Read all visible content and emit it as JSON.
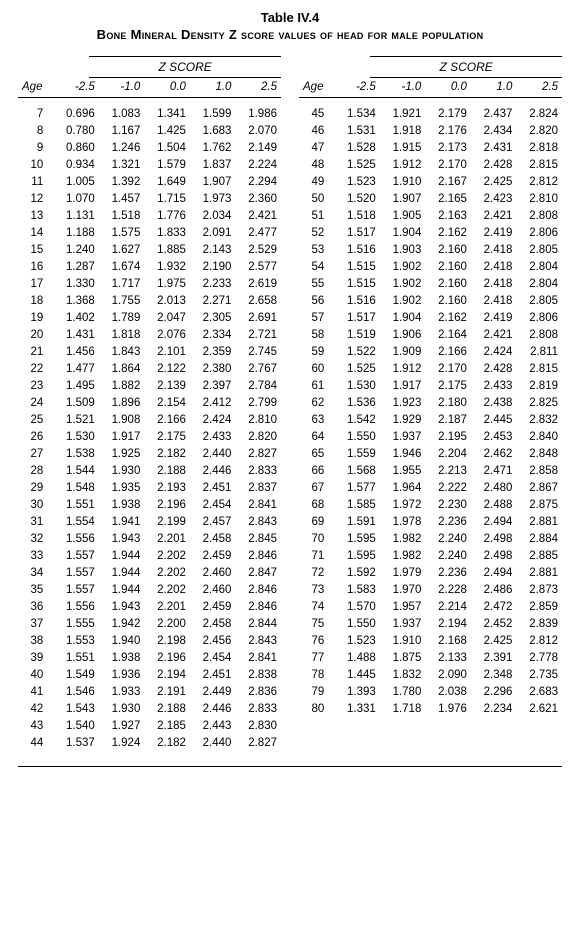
{
  "table_label": "Table IV.4",
  "title": "Bone Mineral Density Z score values of head for male population",
  "z_header": "Z  SCORE",
  "age_header": "Age",
  "score_headers": [
    "-2.5",
    "-1.0",
    "0.0",
    "1.0",
    "2.5"
  ],
  "left": [
    {
      "age": "7",
      "v": [
        "0.696",
        "1.083",
        "1.341",
        "1.599",
        "1.986"
      ]
    },
    {
      "age": "8",
      "v": [
        "0.780",
        "1.167",
        "1.425",
        "1.683",
        "2.070"
      ]
    },
    {
      "age": "9",
      "v": [
        "0.860",
        "1.246",
        "1.504",
        "1.762",
        "2.149"
      ]
    },
    {
      "age": "10",
      "v": [
        "0.934",
        "1.321",
        "1.579",
        "1.837",
        "2.224"
      ]
    },
    {
      "age": "11",
      "v": [
        "1.005",
        "1.392",
        "1.649",
        "1.907",
        "2.294"
      ]
    },
    {
      "age": "12",
      "v": [
        "1.070",
        "1.457",
        "1.715",
        "1.973",
        "2.360"
      ]
    },
    {
      "age": "13",
      "v": [
        "1.131",
        "1.518",
        "1.776",
        "2.034",
        "2.421"
      ]
    },
    {
      "age": "14",
      "v": [
        "1.188",
        "1.575",
        "1.833",
        "2.091",
        "2.477"
      ]
    },
    {
      "age": "15",
      "v": [
        "1.240",
        "1.627",
        "1.885",
        "2.143",
        "2.529"
      ]
    },
    {
      "age": "16",
      "v": [
        "1.287",
        "1.674",
        "1.932",
        "2.190",
        "2.577"
      ]
    },
    {
      "age": "17",
      "v": [
        "1.330",
        "1.717",
        "1.975",
        "2.233",
        "2.619"
      ]
    },
    {
      "age": "18",
      "v": [
        "1.368",
        "1.755",
        "2.013",
        "2.271",
        "2.658"
      ]
    },
    {
      "age": "19",
      "v": [
        "1.402",
        "1.789",
        "2.047",
        "2.305",
        "2.691"
      ]
    },
    {
      "age": "20",
      "v": [
        "1.431",
        "1.818",
        "2.076",
        "2.334",
        "2.721"
      ]
    },
    {
      "age": "21",
      "v": [
        "1.456",
        "1.843",
        "2.101",
        "2.359",
        "2.745"
      ]
    },
    {
      "age": "22",
      "v": [
        "1.477",
        "1.864",
        "2.122",
        "2.380",
        "2.767"
      ]
    },
    {
      "age": "23",
      "v": [
        "1.495",
        "1.882",
        "2.139",
        "2.397",
        "2.784"
      ]
    },
    {
      "age": "24",
      "v": [
        "1.509",
        "1.896",
        "2.154",
        "2.412",
        "2.799"
      ]
    },
    {
      "age": "25",
      "v": [
        "1.521",
        "1.908",
        "2.166",
        "2.424",
        "2.810"
      ]
    },
    {
      "age": "26",
      "v": [
        "1.530",
        "1.917",
        "2.175",
        "2.433",
        "2.820"
      ]
    },
    {
      "age": "27",
      "v": [
        "1.538",
        "1.925",
        "2.182",
        "2.440",
        "2.827"
      ]
    },
    {
      "age": "28",
      "v": [
        "1.544",
        "1.930",
        "2.188",
        "2.446",
        "2.833"
      ]
    },
    {
      "age": "29",
      "v": [
        "1.548",
        "1.935",
        "2.193",
        "2.451",
        "2.837"
      ]
    },
    {
      "age": "30",
      "v": [
        "1.551",
        "1.938",
        "2.196",
        "2.454",
        "2.841"
      ]
    },
    {
      "age": "31",
      "v": [
        "1.554",
        "1.941",
        "2.199",
        "2.457",
        "2.843"
      ]
    },
    {
      "age": "32",
      "v": [
        "1.556",
        "1.943",
        "2.201",
        "2.458",
        "2.845"
      ]
    },
    {
      "age": "33",
      "v": [
        "1.557",
        "1.944",
        "2.202",
        "2.459",
        "2.846"
      ]
    },
    {
      "age": "34",
      "v": [
        "1.557",
        "1.944",
        "2.202",
        "2.460",
        "2.847"
      ]
    },
    {
      "age": "35",
      "v": [
        "1.557",
        "1.944",
        "2.202",
        "2.460",
        "2.846"
      ]
    },
    {
      "age": "36",
      "v": [
        "1.556",
        "1.943",
        "2.201",
        "2.459",
        "2.846"
      ]
    },
    {
      "age": "37",
      "v": [
        "1.555",
        "1.942",
        "2.200",
        "2.458",
        "2.844"
      ]
    },
    {
      "age": "38",
      "v": [
        "1.553",
        "1.940",
        "2.198",
        "2.456",
        "2.843"
      ]
    },
    {
      "age": "39",
      "v": [
        "1.551",
        "1.938",
        "2.196",
        "2.454",
        "2.841"
      ]
    },
    {
      "age": "40",
      "v": [
        "1.549",
        "1.936",
        "2.194",
        "2.451",
        "2.838"
      ]
    },
    {
      "age": "41",
      "v": [
        "1.546",
        "1.933",
        "2.191",
        "2.449",
        "2.836"
      ]
    },
    {
      "age": "42",
      "v": [
        "1.543",
        "1.930",
        "2.188",
        "2.446",
        "2.833"
      ]
    },
    {
      "age": "43",
      "v": [
        "1.540",
        "1.927",
        "2.185",
        "2.443",
        "2.830"
      ]
    },
    {
      "age": "44",
      "v": [
        "1.537",
        "1.924",
        "2.182",
        "2.440",
        "2.827"
      ]
    }
  ],
  "right": [
    {
      "age": "45",
      "v": [
        "1.534",
        "1.921",
        "2.179",
        "2.437",
        "2.824"
      ]
    },
    {
      "age": "46",
      "v": [
        "1.531",
        "1.918",
        "2.176",
        "2.434",
        "2.820"
      ]
    },
    {
      "age": "47",
      "v": [
        "1.528",
        "1.915",
        "2.173",
        "2.431",
        "2.818"
      ]
    },
    {
      "age": "48",
      "v": [
        "1.525",
        "1.912",
        "2.170",
        "2.428",
        "2.815"
      ]
    },
    {
      "age": "49",
      "v": [
        "1.523",
        "1.910",
        "2.167",
        "2.425",
        "2.812"
      ]
    },
    {
      "age": "50",
      "v": [
        "1.520",
        "1.907",
        "2.165",
        "2.423",
        "2.810"
      ]
    },
    {
      "age": "51",
      "v": [
        "1.518",
        "1.905",
        "2.163",
        "2.421",
        "2.808"
      ]
    },
    {
      "age": "52",
      "v": [
        "1.517",
        "1.904",
        "2.162",
        "2.419",
        "2.806"
      ]
    },
    {
      "age": "53",
      "v": [
        "1.516",
        "1.903",
        "2.160",
        "2.418",
        "2.805"
      ]
    },
    {
      "age": "54",
      "v": [
        "1.515",
        "1.902",
        "2.160",
        "2.418",
        "2.804"
      ]
    },
    {
      "age": "55",
      "v": [
        "1.515",
        "1.902",
        "2.160",
        "2.418",
        "2.804"
      ]
    },
    {
      "age": "56",
      "v": [
        "1.516",
        "1.902",
        "2.160",
        "2.418",
        "2.805"
      ]
    },
    {
      "age": "57",
      "v": [
        "1.517",
        "1.904",
        "2.162",
        "2.419",
        "2.806"
      ]
    },
    {
      "age": "58",
      "v": [
        "1.519",
        "1.906",
        "2.164",
        "2.421",
        "2.808"
      ]
    },
    {
      "age": "59",
      "v": [
        "1.522",
        "1.909",
        "2.166",
        "2.424",
        "2.811"
      ]
    },
    {
      "age": "60",
      "v": [
        "1.525",
        "1.912",
        "2.170",
        "2.428",
        "2.815"
      ]
    },
    {
      "age": "61",
      "v": [
        "1.530",
        "1.917",
        "2.175",
        "2.433",
        "2.819"
      ]
    },
    {
      "age": "62",
      "v": [
        "1.536",
        "1.923",
        "2.180",
        "2.438",
        "2.825"
      ]
    },
    {
      "age": "63",
      "v": [
        "1.542",
        "1.929",
        "2.187",
        "2.445",
        "2.832"
      ]
    },
    {
      "age": "64",
      "v": [
        "1.550",
        "1.937",
        "2.195",
        "2.453",
        "2.840"
      ]
    },
    {
      "age": "65",
      "v": [
        "1.559",
        "1.946",
        "2.204",
        "2.462",
        "2.848"
      ]
    },
    {
      "age": "66",
      "v": [
        "1.568",
        "1.955",
        "2.213",
        "2.471",
        "2.858"
      ]
    },
    {
      "age": "67",
      "v": [
        "1.577",
        "1.964",
        "2.222",
        "2.480",
        "2.867"
      ]
    },
    {
      "age": "68",
      "v": [
        "1.585",
        "1.972",
        "2.230",
        "2.488",
        "2.875"
      ]
    },
    {
      "age": "69",
      "v": [
        "1.591",
        "1.978",
        "2.236",
        "2.494",
        "2.881"
      ]
    },
    {
      "age": "70",
      "v": [
        "1.595",
        "1.982",
        "2.240",
        "2.498",
        "2.884"
      ]
    },
    {
      "age": "71",
      "v": [
        "1.595",
        "1.982",
        "2.240",
        "2.498",
        "2.885"
      ]
    },
    {
      "age": "72",
      "v": [
        "1.592",
        "1.979",
        "2.236",
        "2.494",
        "2.881"
      ]
    },
    {
      "age": "73",
      "v": [
        "1.583",
        "1.970",
        "2.228",
        "2.486",
        "2.873"
      ]
    },
    {
      "age": "74",
      "v": [
        "1.570",
        "1.957",
        "2.214",
        "2.472",
        "2.859"
      ]
    },
    {
      "age": "75",
      "v": [
        "1.550",
        "1.937",
        "2.194",
        "2.452",
        "2.839"
      ]
    },
    {
      "age": "76",
      "v": [
        "1.523",
        "1.910",
        "2.168",
        "2.425",
        "2.812"
      ]
    },
    {
      "age": "77",
      "v": [
        "1.488",
        "1.875",
        "2.133",
        "2.391",
        "2.778"
      ]
    },
    {
      "age": "78",
      "v": [
        "1.445",
        "1.832",
        "2.090",
        "2.348",
        "2.735"
      ]
    },
    {
      "age": "79",
      "v": [
        "1.393",
        "1.780",
        "2.038",
        "2.296",
        "2.683"
      ]
    },
    {
      "age": "80",
      "v": [
        "1.331",
        "1.718",
        "1.976",
        "2.234",
        "2.621"
      ]
    }
  ]
}
